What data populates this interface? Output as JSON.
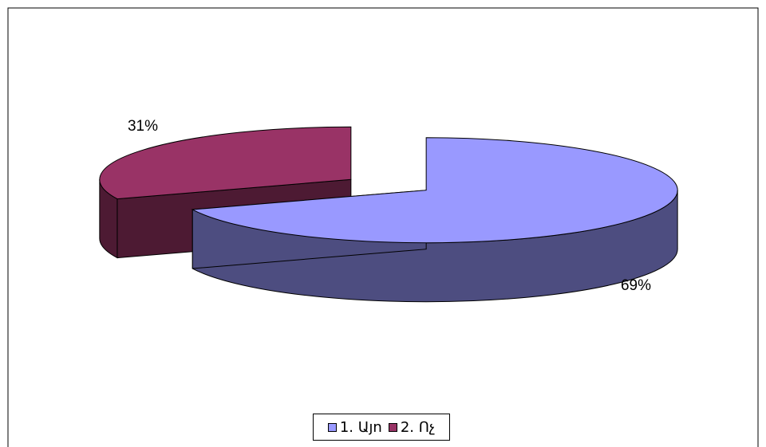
{
  "chart_data": {
    "type": "pie",
    "subtype": "3d-exploded",
    "categories": [
      "1. Այո",
      "2. Ոչ"
    ],
    "values": [
      69,
      31
    ],
    "data_labels": [
      "69%",
      "31%"
    ],
    "colors": [
      "#9999FF",
      "#993366"
    ],
    "side_colors": [
      "#4D4D80",
      "#4D1A33"
    ],
    "title": "",
    "legend_position": "bottom"
  }
}
